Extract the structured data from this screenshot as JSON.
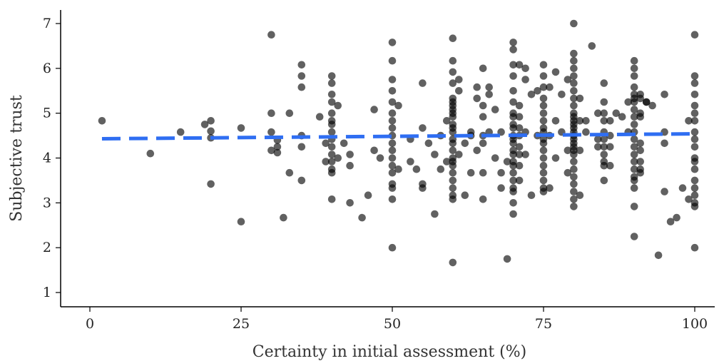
{
  "chart_data": {
    "type": "scatter",
    "xlabel": "Certainty in initial assessment (%)",
    "ylabel": "Subjective trust",
    "xlim": [
      -5,
      103
    ],
    "ylim": [
      0.8,
      7.3
    ],
    "xticks": [
      0,
      25,
      50,
      75,
      100
    ],
    "yticks": [
      1,
      2,
      3,
      4,
      5,
      6,
      7
    ],
    "point_color": "#000000",
    "trend_color": "#2f6ef2",
    "trend_line": {
      "style": "dashed",
      "x": [
        2,
        100
      ],
      "y": [
        4.43,
        4.54
      ]
    },
    "grid": false,
    "points": [
      [
        2,
        4.83
      ],
      [
        10,
        4.1
      ],
      [
        15,
        4.58
      ],
      [
        19,
        4.75
      ],
      [
        20,
        4.83
      ],
      [
        20,
        4.6
      ],
      [
        20,
        4.45
      ],
      [
        20,
        3.42
      ],
      [
        25,
        4.67
      ],
      [
        25,
        2.58
      ],
      [
        30,
        6.75
      ],
      [
        30,
        5.0
      ],
      [
        30,
        4.58
      ],
      [
        30,
        4.17
      ],
      [
        31,
        4.4
      ],
      [
        31,
        4.25
      ],
      [
        31,
        4.12
      ],
      [
        32,
        2.67
      ],
      [
        33,
        5.0
      ],
      [
        33,
        3.67
      ],
      [
        35,
        6.08
      ],
      [
        35,
        5.83
      ],
      [
        35,
        5.58
      ],
      [
        35,
        4.5
      ],
      [
        35,
        4.25
      ],
      [
        35,
        3.5
      ],
      [
        38,
        4.92
      ],
      [
        39,
        4.33
      ],
      [
        39,
        3.92
      ],
      [
        40,
        5.83
      ],
      [
        40,
        5.67
      ],
      [
        40,
        5.42
      ],
      [
        40,
        5.25
      ],
      [
        40,
        5.0
      ],
      [
        40,
        4.83
      ],
      [
        40,
        4.75
      ],
      [
        40,
        4.58
      ],
      [
        40,
        4.42
      ],
      [
        40,
        4.25
      ],
      [
        40,
        4.08
      ],
      [
        40,
        3.92
      ],
      [
        40,
        3.75
      ],
      [
        40,
        3.67
      ],
      [
        40,
        3.08
      ],
      [
        41,
        5.17
      ],
      [
        41,
        4.0
      ],
      [
        42,
        4.33
      ],
      [
        43,
        4.08
      ],
      [
        43,
        3.83
      ],
      [
        43,
        3.0
      ],
      [
        45,
        2.67
      ],
      [
        46,
        3.17
      ],
      [
        47,
        5.08
      ],
      [
        47,
        4.17
      ],
      [
        48,
        4.0
      ],
      [
        50,
        6.58
      ],
      [
        50,
        6.17
      ],
      [
        50,
        5.75
      ],
      [
        50,
        5.5
      ],
      [
        50,
        5.25
      ],
      [
        50,
        5.0
      ],
      [
        50,
        4.83
      ],
      [
        50,
        4.67
      ],
      [
        50,
        4.5
      ],
      [
        50,
        4.33
      ],
      [
        50,
        4.17
      ],
      [
        50,
        4.0
      ],
      [
        50,
        3.83
      ],
      [
        50,
        3.67
      ],
      [
        50,
        3.42
      ],
      [
        50,
        3.33
      ],
      [
        50,
        3.08
      ],
      [
        50,
        2.0
      ],
      [
        51,
        5.17
      ],
      [
        51,
        3.75
      ],
      [
        53,
        4.42
      ],
      [
        53,
        3.92
      ],
      [
        54,
        3.75
      ],
      [
        55,
        5.67
      ],
      [
        55,
        4.67
      ],
      [
        55,
        3.42
      ],
      [
        55,
        3.33
      ],
      [
        56,
        4.33
      ],
      [
        57,
        4.08
      ],
      [
        57,
        2.75
      ],
      [
        58,
        3.75
      ],
      [
        58,
        4.5
      ],
      [
        59,
        4.83
      ],
      [
        59,
        3.92
      ],
      [
        60,
        6.67
      ],
      [
        60,
        6.17
      ],
      [
        60,
        5.92
      ],
      [
        60,
        5.67
      ],
      [
        60,
        5.33
      ],
      [
        60,
        5.25
      ],
      [
        60,
        5.17
      ],
      [
        60,
        5.08
      ],
      [
        60,
        5.0
      ],
      [
        60,
        4.92
      ],
      [
        60,
        4.75
      ],
      [
        60,
        4.67
      ],
      [
        60,
        4.58
      ],
      [
        60,
        4.42
      ],
      [
        60,
        4.33
      ],
      [
        60,
        4.17
      ],
      [
        60,
        4.0
      ],
      [
        60,
        3.92
      ],
      [
        60,
        3.83
      ],
      [
        60,
        3.67
      ],
      [
        60,
        3.5
      ],
      [
        60,
        3.33
      ],
      [
        60,
        3.17
      ],
      [
        60,
        3.08
      ],
      [
        60,
        1.67
      ],
      [
        61,
        5.75
      ],
      [
        61,
        5.5
      ],
      [
        61,
        4.08
      ],
      [
        62,
        4.33
      ],
      [
        62,
        3.17
      ],
      [
        63,
        4.58
      ],
      [
        63,
        4.5
      ],
      [
        63,
        3.67
      ],
      [
        64,
        5.58
      ],
      [
        64,
        5.33
      ],
      [
        64,
        4.17
      ],
      [
        65,
        6.0
      ],
      [
        65,
        5.17
      ],
      [
        65,
        4.92
      ],
      [
        65,
        4.5
      ],
      [
        65,
        4.33
      ],
      [
        65,
        3.67
      ],
      [
        65,
        3.08
      ],
      [
        66,
        5.58
      ],
      [
        66,
        5.42
      ],
      [
        66,
        4.58
      ],
      [
        67,
        5.08
      ],
      [
        67,
        4.0
      ],
      [
        68,
        4.58
      ],
      [
        68,
        3.67
      ],
      [
        68,
        3.33
      ],
      [
        69,
        3.92
      ],
      [
        69,
        1.75
      ],
      [
        70,
        6.58
      ],
      [
        70,
        6.42
      ],
      [
        70,
        6.08
      ],
      [
        70,
        5.83
      ],
      [
        70,
        5.5
      ],
      [
        70,
        5.25
      ],
      [
        70,
        5.0
      ],
      [
        70,
        4.92
      ],
      [
        70,
        4.75
      ],
      [
        70,
        4.67
      ],
      [
        70,
        4.5
      ],
      [
        70,
        4.42
      ],
      [
        70,
        4.33
      ],
      [
        70,
        4.17
      ],
      [
        70,
        4.08
      ],
      [
        70,
        3.92
      ],
      [
        70,
        3.83
      ],
      [
        70,
        3.67
      ],
      [
        70,
        3.5
      ],
      [
        70,
        3.33
      ],
      [
        70,
        3.25
      ],
      [
        70,
        3.0
      ],
      [
        70,
        2.75
      ],
      [
        71,
        6.08
      ],
      [
        71,
        5.17
      ],
      [
        71,
        4.92
      ],
      [
        71,
        4.67
      ],
      [
        71,
        4.5
      ],
      [
        71,
        4.25
      ],
      [
        71,
        4.08
      ],
      [
        71,
        3.83
      ],
      [
        71,
        3.5
      ],
      [
        72,
        6.0
      ],
      [
        72,
        5.75
      ],
      [
        72,
        4.58
      ],
      [
        72,
        4.08
      ],
      [
        73,
        5.42
      ],
      [
        73,
        3.17
      ],
      [
        74,
        5.5
      ],
      [
        74,
        4.5
      ],
      [
        75,
        6.08
      ],
      [
        75,
        5.83
      ],
      [
        75,
        5.58
      ],
      [
        75,
        5.33
      ],
      [
        75,
        5.17
      ],
      [
        75,
        5.0
      ],
      [
        75,
        4.83
      ],
      [
        75,
        4.67
      ],
      [
        75,
        4.58
      ],
      [
        75,
        4.42
      ],
      [
        75,
        4.33
      ],
      [
        75,
        4.17
      ],
      [
        75,
        4.0
      ],
      [
        75,
        3.83
      ],
      [
        75,
        3.67
      ],
      [
        75,
        3.5
      ],
      [
        75,
        3.33
      ],
      [
        75,
        3.25
      ],
      [
        76,
        5.58
      ],
      [
        76,
        4.5
      ],
      [
        76,
        3.33
      ],
      [
        77,
        5.92
      ],
      [
        77,
        4.83
      ],
      [
        77,
        4.0
      ],
      [
        78,
        5.42
      ],
      [
        78,
        4.58
      ],
      [
        79,
        5.75
      ],
      [
        79,
        4.17
      ],
      [
        79,
        3.67
      ],
      [
        80,
        7.0
      ],
      [
        80,
        6.33
      ],
      [
        80,
        6.17
      ],
      [
        80,
        6.0
      ],
      [
        80,
        5.83
      ],
      [
        80,
        5.67
      ],
      [
        80,
        5.5
      ],
      [
        80,
        5.33
      ],
      [
        80,
        5.17
      ],
      [
        80,
        5.0
      ],
      [
        80,
        4.92
      ],
      [
        80,
        4.83
      ],
      [
        80,
        4.75
      ],
      [
        80,
        4.67
      ],
      [
        80,
        4.58
      ],
      [
        80,
        4.5
      ],
      [
        80,
        4.42
      ],
      [
        80,
        4.33
      ],
      [
        80,
        4.25
      ],
      [
        80,
        4.17
      ],
      [
        80,
        4.08
      ],
      [
        80,
        3.92
      ],
      [
        80,
        3.75
      ],
      [
        80,
        3.58
      ],
      [
        80,
        3.42
      ],
      [
        80,
        3.25
      ],
      [
        80,
        3.08
      ],
      [
        80,
        2.92
      ],
      [
        81,
        5.33
      ],
      [
        81,
        4.83
      ],
      [
        81,
        4.17
      ],
      [
        81,
        3.17
      ],
      [
        82,
        4.83
      ],
      [
        82,
        4.58
      ],
      [
        83,
        6.5
      ],
      [
        84,
        4.42
      ],
      [
        84,
        4.25
      ],
      [
        84,
        5.0
      ],
      [
        85,
        5.67
      ],
      [
        85,
        5.25
      ],
      [
        85,
        5.0
      ],
      [
        85,
        4.83
      ],
      [
        85,
        4.58
      ],
      [
        85,
        4.42
      ],
      [
        85,
        4.25
      ],
      [
        85,
        4.08
      ],
      [
        85,
        3.92
      ],
      [
        85,
        3.83
      ],
      [
        85,
        3.5
      ],
      [
        86,
        4.83
      ],
      [
        86,
        4.5
      ],
      [
        86,
        4.25
      ],
      [
        86,
        3.83
      ],
      [
        87,
        5.0
      ],
      [
        88,
        4.92
      ],
      [
        89,
        5.25
      ],
      [
        89,
        4.58
      ],
      [
        90,
        6.17
      ],
      [
        90,
        6.0
      ],
      [
        90,
        5.83
      ],
      [
        90,
        5.58
      ],
      [
        90,
        5.42
      ],
      [
        90,
        5.33
      ],
      [
        90,
        5.25
      ],
      [
        90,
        5.08
      ],
      [
        90,
        4.92
      ],
      [
        90,
        4.75
      ],
      [
        90,
        4.58
      ],
      [
        90,
        4.42
      ],
      [
        90,
        4.25
      ],
      [
        90,
        4.08
      ],
      [
        90,
        3.92
      ],
      [
        90,
        3.75
      ],
      [
        90,
        3.58
      ],
      [
        90,
        3.5
      ],
      [
        90,
        3.33
      ],
      [
        90,
        2.92
      ],
      [
        90,
        2.25
      ],
      [
        91,
        5.42
      ],
      [
        91,
        5.33
      ],
      [
        91,
        5.0
      ],
      [
        91,
        4.92
      ],
      [
        91,
        4.33
      ],
      [
        91,
        4.17
      ],
      [
        91,
        3.92
      ],
      [
        91,
        3.75
      ],
      [
        91,
        3.67
      ],
      [
        92,
        5.25
      ],
      [
        92,
        5.25
      ],
      [
        93,
        5.17
      ],
      [
        94,
        1.83
      ],
      [
        95,
        5.42
      ],
      [
        95,
        4.58
      ],
      [
        95,
        4.33
      ],
      [
        95,
        3.25
      ],
      [
        96,
        2.58
      ],
      [
        97,
        2.67
      ],
      [
        98,
        3.33
      ],
      [
        99,
        4.83
      ],
      [
        100,
        6.75
      ],
      [
        100,
        5.83
      ],
      [
        100,
        5.67
      ],
      [
        100,
        5.42
      ],
      [
        100,
        5.17
      ],
      [
        100,
        5.0
      ],
      [
        100,
        4.83
      ],
      [
        100,
        4.58
      ],
      [
        100,
        4.42
      ],
      [
        100,
        4.25
      ],
      [
        100,
        4.0
      ],
      [
        100,
        3.92
      ],
      [
        100,
        3.75
      ],
      [
        100,
        3.5
      ],
      [
        100,
        3.33
      ],
      [
        100,
        3.17
      ],
      [
        100,
        3.0
      ],
      [
        100,
        2.92
      ],
      [
        100,
        2.0
      ],
      [
        99,
        3.08
      ]
    ]
  }
}
